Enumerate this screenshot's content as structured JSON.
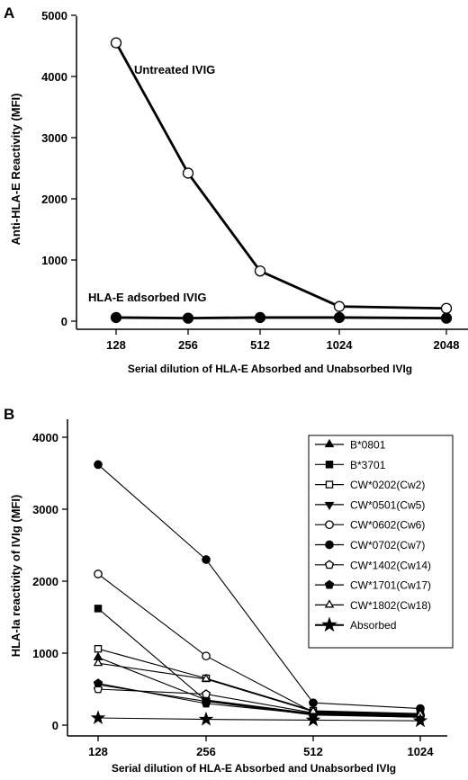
{
  "chart_data": [
    {
      "panel": "A",
      "type": "line",
      "title": "",
      "xlabel": "Serial dilution of HLA-E Absorbed and Unabsorbed IVIg",
      "ylabel": "Anti-HLA-E Reactivity (MFI)",
      "categories": [
        "128",
        "256",
        "512",
        "1024",
        "2048"
      ],
      "yticks": [
        "0",
        "1000",
        "2000",
        "3000",
        "4000",
        "5000"
      ],
      "ylim": [
        0,
        5000
      ],
      "series": [
        {
          "name": "Untreated IVIG",
          "marker": "open-circle",
          "values": [
            4550,
            2420,
            820,
            240,
            210
          ]
        },
        {
          "name": "HLA-E adsorbed IVIG",
          "marker": "filled-circle",
          "values": [
            60,
            50,
            60,
            60,
            50
          ]
        }
      ]
    },
    {
      "panel": "B",
      "type": "line",
      "title": "",
      "xlabel": "Serial dilution of HLA-E Absorbed and Unabsorbed IVIg",
      "ylabel": "HLA-Ia reactivity of IVIg (MFI)",
      "categories": [
        "128",
        "256",
        "512",
        "1024"
      ],
      "yticks": [
        "0",
        "1000",
        "2000",
        "3000",
        "4000"
      ],
      "ylim": [
        0,
        4000
      ],
      "legend": "top-right",
      "series": [
        {
          "name": "B*0801",
          "marker": "filled-triangle",
          "values": [
            940,
            350,
            160,
            120
          ]
        },
        {
          "name": "B*3701",
          "marker": "filled-square",
          "values": [
            1620,
            340,
            150,
            110
          ]
        },
        {
          "name": "CW*0202(Cw2)",
          "marker": "open-square",
          "values": [
            1060,
            650,
            200,
            160
          ]
        },
        {
          "name": "CW*0501(Cw5)",
          "marker": "filled-down-triangle",
          "values": [
            560,
            330,
            140,
            110
          ]
        },
        {
          "name": "CW*0602(Cw6)",
          "marker": "open-circle",
          "values": [
            2100,
            960,
            180,
            140
          ]
        },
        {
          "name": "CW*0702(Cw7)",
          "marker": "filled-circle",
          "values": [
            3620,
            2300,
            310,
            230
          ]
        },
        {
          "name": "CW*1402(Cw14)",
          "marker": "open-pentagon",
          "values": [
            500,
            430,
            170,
            130
          ]
        },
        {
          "name": "CW*1701(Cw17)",
          "marker": "filled-pentagon",
          "values": [
            580,
            300,
            150,
            110
          ]
        },
        {
          "name": "CW*1802(Cw18)",
          "marker": "open-triangle",
          "values": [
            860,
            640,
            190,
            150
          ]
        },
        {
          "name": "Absorbed",
          "marker": "star",
          "values": [
            100,
            80,
            70,
            60
          ]
        }
      ]
    }
  ]
}
